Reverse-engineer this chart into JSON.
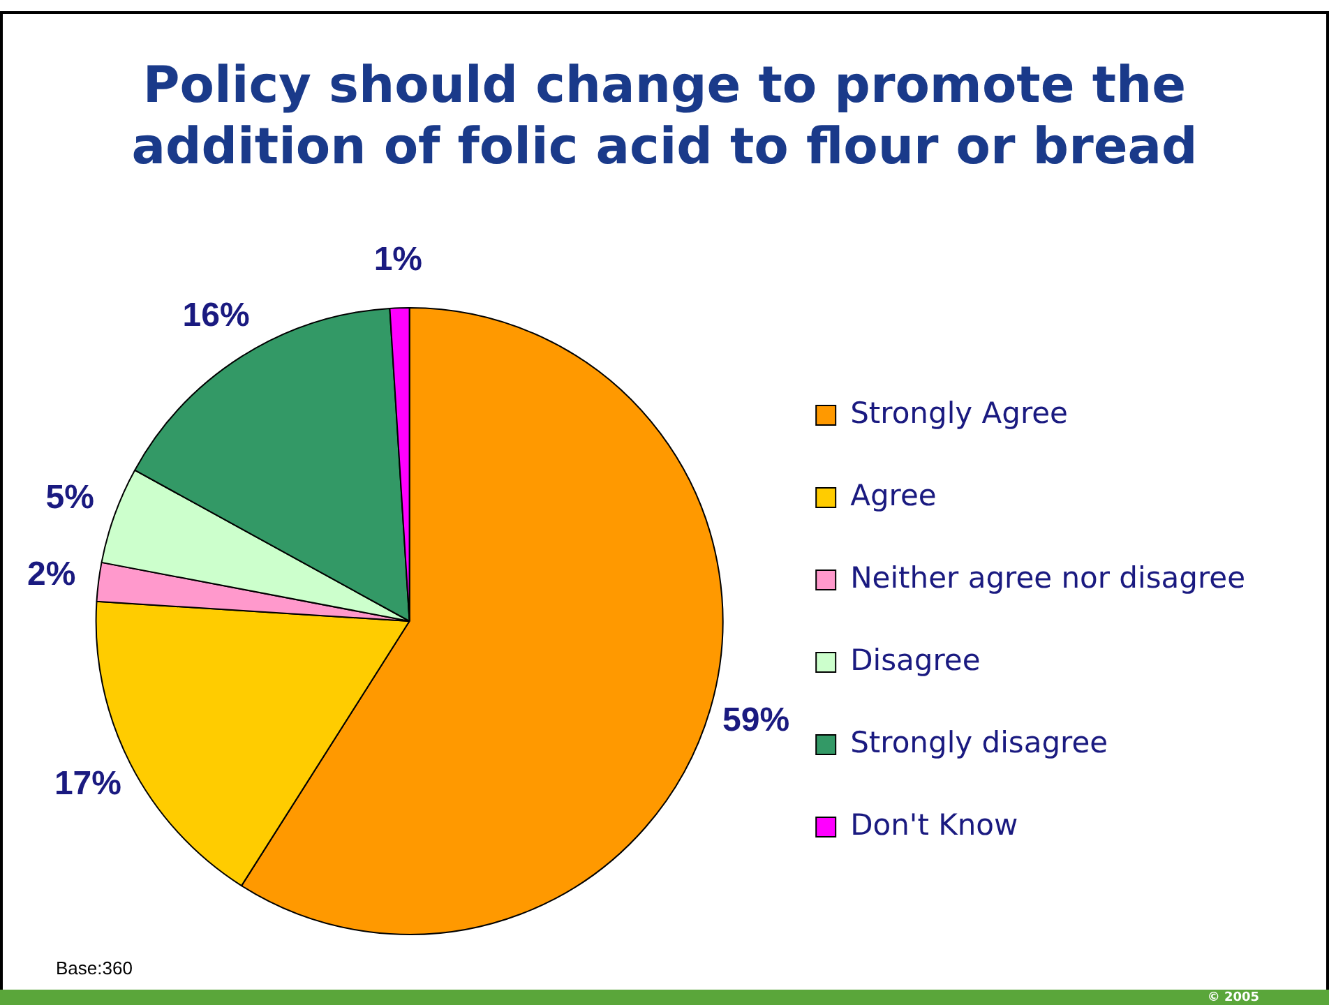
{
  "chart_data": {
    "type": "pie",
    "title": "Policy should change to promote the addition of folic acid to flour or bread",
    "categories": [
      "Strongly Agree",
      "Agree",
      "Neither agree nor disagree",
      "Disagree",
      "Strongly disagree",
      "Don't Know"
    ],
    "values": [
      59,
      17,
      2,
      5,
      16,
      1
    ],
    "colors": [
      "#ff9900",
      "#ffcc00",
      "#ff99cc",
      "#ccffcc",
      "#339966",
      "#ff00ff"
    ],
    "value_labels": [
      "59%",
      "17%",
      "2%",
      "5%",
      "16%",
      "1%"
    ],
    "legend": "right",
    "annotations": [
      "Base:360",
      "© 2005"
    ]
  }
}
